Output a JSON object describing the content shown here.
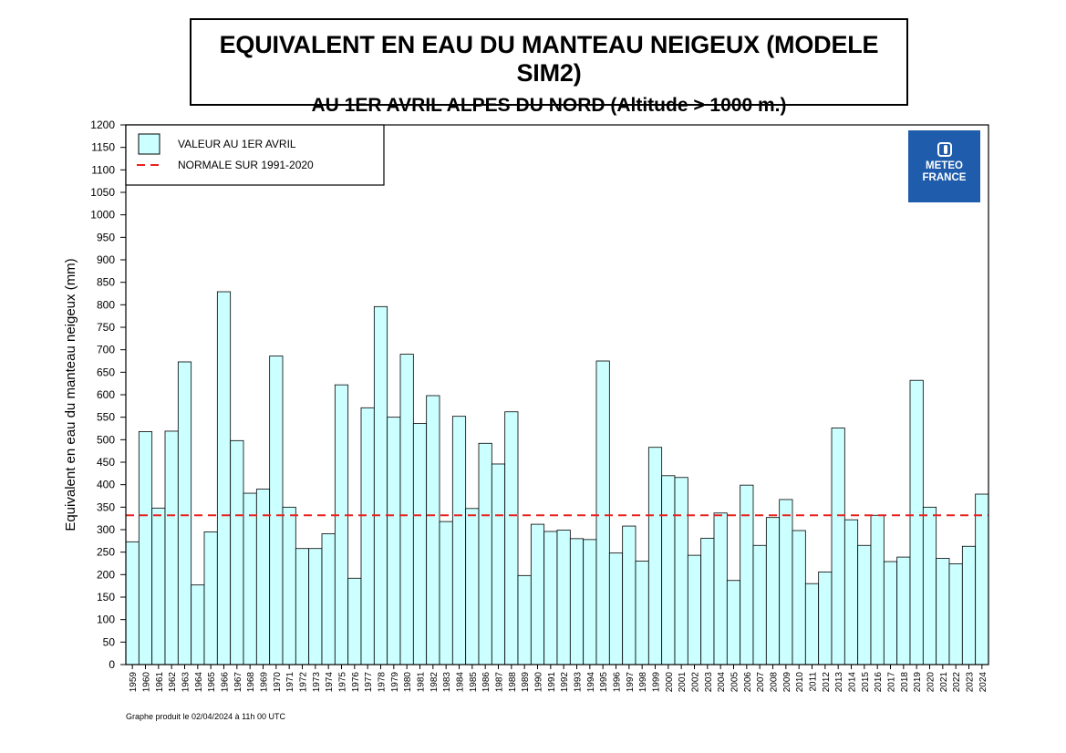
{
  "header": {
    "title": "EQUIVALENT EN EAU DU MANTEAU NEIGEUX (MODELE SIM2)",
    "subtitle": "AU 1ER AVRIL ALPES DU NORD (Altitude > 1000 m.)"
  },
  "logo": {
    "line1": "METEO",
    "line2": "FRANCE"
  },
  "footnote": "Graphe produit le 02/04/2024 à 11h 00 UTC",
  "chart_data": {
    "type": "bar",
    "title": "EQUIVALENT EN EAU DU MANTEAU NEIGEUX (MODELE SIM2)",
    "subtitle": "AU 1ER AVRIL ALPES DU NORD (Altitude > 1000 m.)",
    "ylabel": "Equivalent en eau du manteau neigeux (mm)",
    "xlabel": "",
    "ylim": [
      0,
      1200
    ],
    "ytick_step": 50,
    "grid": false,
    "legend_position": "top-left",
    "bar_color": "#ccffff",
    "normal_color": "#e8211e",
    "normal_value": 332,
    "series": [
      {
        "name": "VALEUR AU 1ER AVRIL",
        "values": [
          273,
          518,
          348,
          519,
          673,
          177,
          295,
          829,
          498,
          381,
          390,
          686,
          350,
          258,
          258,
          291,
          622,
          192,
          571,
          796,
          550,
          690,
          536,
          598,
          318,
          552,
          347,
          492,
          446,
          562,
          198,
          312,
          296,
          299,
          280,
          278,
          675,
          248,
          308,
          230,
          483,
          420,
          416,
          243,
          281,
          337,
          187,
          399,
          265,
          327,
          367,
          298,
          180,
          206,
          526,
          322,
          265,
          332,
          229,
          239,
          632,
          350,
          236,
          224,
          263,
          379
        ]
      }
    ],
    "normal_label": "NORMALE SUR 1991-2020",
    "categories": [
      "1959",
      "1960",
      "1961",
      "1962",
      "1963",
      "1964",
      "1965",
      "1966",
      "1967",
      "1968",
      "1969",
      "1970",
      "1971",
      "1972",
      "1973",
      "1974",
      "1975",
      "1976",
      "1977",
      "1978",
      "1979",
      "1980",
      "1981",
      "1982",
      "1983",
      "1984",
      "1985",
      "1986",
      "1987",
      "1988",
      "1989",
      "1990",
      "1991",
      "1992",
      "1993",
      "1994",
      "1995",
      "1996",
      "1997",
      "1998",
      "1999",
      "2000",
      "2001",
      "2002",
      "2003",
      "2004",
      "2005",
      "2006",
      "2007",
      "2008",
      "2009",
      "2010",
      "2011",
      "2012",
      "2013",
      "2014",
      "2015",
      "2016",
      "2017",
      "2018",
      "2019",
      "2020",
      "2021",
      "2022",
      "2023",
      "2024"
    ]
  }
}
